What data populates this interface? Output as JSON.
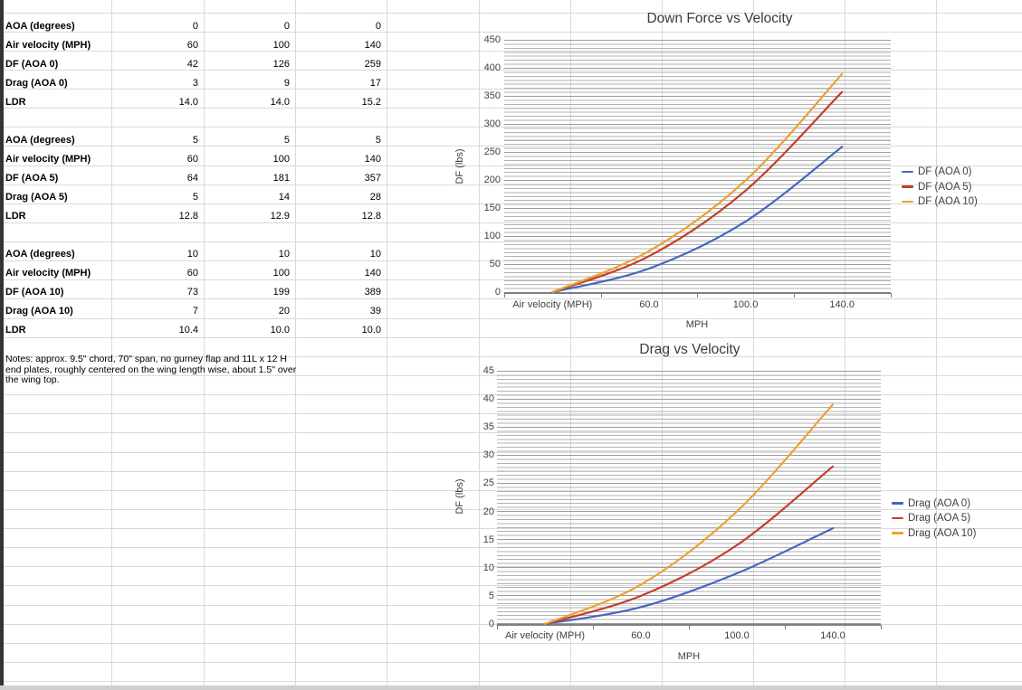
{
  "table": {
    "blocks": [
      {
        "rows": [
          {
            "label": "AOA (degrees)",
            "values": [
              "0",
              "0",
              "0"
            ]
          },
          {
            "label": "Air velocity (MPH)",
            "values": [
              "60",
              "100",
              "140"
            ]
          },
          {
            "label": "DF (AOA 0)",
            "values": [
              "42",
              "126",
              "259"
            ]
          },
          {
            "label": "Drag (AOA 0)",
            "values": [
              "3",
              "9",
              "17"
            ]
          },
          {
            "label": "LDR",
            "values": [
              "14.0",
              "14.0",
              "15.2"
            ]
          }
        ]
      },
      {
        "rows": [
          {
            "label": "AOA (degrees)",
            "values": [
              "5",
              "5",
              "5"
            ]
          },
          {
            "label": "Air velocity (MPH)",
            "values": [
              "60",
              "100",
              "140"
            ]
          },
          {
            "label": "DF (AOA 5)",
            "values": [
              "64",
              "181",
              "357"
            ]
          },
          {
            "label": "Drag (AOA 5)",
            "values": [
              "5",
              "14",
              "28"
            ]
          },
          {
            "label": "LDR",
            "values": [
              "12.8",
              "12.9",
              "12.8"
            ]
          }
        ]
      },
      {
        "rows": [
          {
            "label": "AOA (degrees)",
            "values": [
              "10",
              "10",
              "10"
            ]
          },
          {
            "label": "Air velocity (MPH)",
            "values": [
              "60",
              "100",
              "140"
            ]
          },
          {
            "label": "DF (AOA 10)",
            "values": [
              "73",
              "199",
              "389"
            ]
          },
          {
            "label": "Drag (AOA 10)",
            "values": [
              "7",
              "20",
              "39"
            ]
          },
          {
            "label": "LDR",
            "values": [
              "10.4",
              "10.0",
              "10.0"
            ]
          }
        ]
      }
    ]
  },
  "notes": "Notes: approx. 9.5\" chord, 70\" span, no gurney flap and 11L x 12 H end plates, roughly centered on the wing length wise, about 1.5\" over the wing top.",
  "chart_data": [
    {
      "type": "line",
      "title": "Down Force vs Velocity",
      "categories": [
        "Air velocity (MPH)",
        "60.0",
        "100.0",
        "140.0"
      ],
      "series": [
        {
          "name": "DF (AOA 0)",
          "values": [
            0,
            42,
            126,
            259
          ],
          "color": "#4467be"
        },
        {
          "name": "DF (AOA 5)",
          "values": [
            0,
            64,
            181,
            357
          ],
          "color": "#c43e28"
        },
        {
          "name": "DF (AOA 10)",
          "values": [
            0,
            73,
            199,
            389
          ],
          "color": "#eda032"
        }
      ],
      "xlabel": "MPH",
      "ylabel": "DF (lbs)",
      "ylim": [
        0,
        450
      ],
      "y_major": 50,
      "y_tick_labels": [
        "450",
        "400",
        "350",
        "300",
        "250",
        "200",
        "150",
        "100",
        "50",
        "0"
      ],
      "grid": "horizontal minor + major",
      "legend_position": "right",
      "smoothed": true
    },
    {
      "type": "line",
      "title": "Drag vs Velocity",
      "categories": [
        "Air velocity (MPH)",
        "60.0",
        "100.0",
        "140.0"
      ],
      "series": [
        {
          "name": "Drag (AOA 0)",
          "values": [
            0,
            3,
            9,
            17
          ],
          "color": "#4467be"
        },
        {
          "name": "Drag (AOA 5)",
          "values": [
            0,
            5,
            14,
            28
          ],
          "color": "#c43e28"
        },
        {
          "name": "Drag (AOA 10)",
          "values": [
            0,
            7,
            20,
            39
          ],
          "color": "#eda032"
        }
      ],
      "xlabel": "MPH",
      "ylabel": "DF (lbs)",
      "ylim": [
        0,
        45
      ],
      "y_major": 5,
      "y_tick_labels": [
        "45",
        "40",
        "35",
        "30",
        "25",
        "20",
        "15",
        "10",
        "5",
        "0"
      ],
      "grid": "horizontal minor + major",
      "legend_position": "right",
      "smoothed": true
    }
  ]
}
